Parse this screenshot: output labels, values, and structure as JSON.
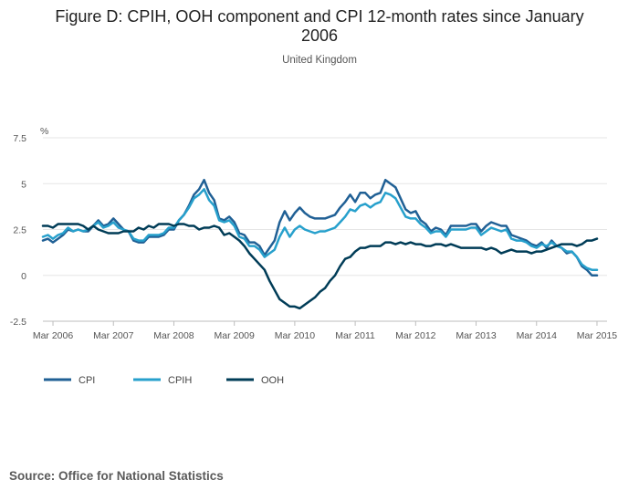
{
  "title": "Figure D: CPIH, OOH component and CPI 12-month rates since January 2006",
  "title_lines": [
    "Figure D: CPIH, OOH component and CPI 12-month rates since January",
    "2006"
  ],
  "subtitle": "United Kingdom",
  "source": "Source: Office for National Statistics",
  "chart_data": {
    "type": "line",
    "title": "Figure D: CPIH, OOH component and CPI 12-month rates since January 2006",
    "subtitle": "United Kingdom",
    "xlabel": "",
    "ylabel": "%",
    "ylim": [
      -2.5,
      7.5
    ],
    "yticks": [
      -2.5,
      0,
      2.5,
      5,
      7.5
    ],
    "ytick_labels": [
      "-2.5",
      "0",
      "2.5",
      "5",
      "7.5"
    ],
    "x_start": "Jan 2006",
    "x_end": "Apr 2015",
    "xticks": [
      "Mar 2006",
      "Mar 2007",
      "Mar 2008",
      "Mar 2009",
      "Mar 2010",
      "Mar 2011",
      "Mar 2012",
      "Mar 2013",
      "Mar 2014",
      "Mar 2015"
    ],
    "grid": true,
    "legend_position": "bottom-left",
    "series": [
      {
        "name": "CPI",
        "color": "#206095",
        "start": "Jan 2006",
        "values": [
          1.9,
          2.0,
          1.8,
          2.0,
          2.2,
          2.5,
          2.4,
          2.5,
          2.4,
          2.4,
          2.7,
          3.0,
          2.7,
          2.8,
          3.1,
          2.8,
          2.5,
          2.4,
          1.9,
          1.8,
          1.8,
          2.1,
          2.1,
          2.1,
          2.2,
          2.5,
          2.5,
          3.0,
          3.3,
          3.8,
          4.4,
          4.7,
          5.2,
          4.5,
          4.1,
          3.1,
          3.0,
          3.2,
          2.9,
          2.3,
          2.2,
          1.8,
          1.8,
          1.6,
          1.1,
          1.5,
          1.9,
          2.9,
          3.5,
          3.0,
          3.4,
          3.7,
          3.4,
          3.2,
          3.1,
          3.1,
          3.1,
          3.2,
          3.3,
          3.7,
          4.0,
          4.4,
          4.0,
          4.5,
          4.5,
          4.2,
          4.4,
          4.5,
          5.2,
          5.0,
          4.8,
          4.2,
          3.6,
          3.4,
          3.5,
          3.0,
          2.8,
          2.4,
          2.6,
          2.5,
          2.2,
          2.7,
          2.7,
          2.7,
          2.7,
          2.8,
          2.8,
          2.4,
          2.7,
          2.9,
          2.8,
          2.7,
          2.7,
          2.2,
          2.1,
          2.0,
          1.9,
          1.7,
          1.6,
          1.8,
          1.5,
          1.9,
          1.6,
          1.5,
          1.2,
          1.3,
          1.0,
          0.5,
          0.3,
          0.0,
          0.0
        ]
      },
      {
        "name": "CPIH",
        "color": "#27a0cc",
        "start": "Jan 2006",
        "values": [
          2.1,
          2.2,
          2.0,
          2.2,
          2.3,
          2.6,
          2.4,
          2.5,
          2.4,
          2.5,
          2.7,
          2.9,
          2.6,
          2.7,
          2.9,
          2.6,
          2.5,
          2.4,
          2.0,
          1.9,
          1.9,
          2.2,
          2.2,
          2.2,
          2.3,
          2.6,
          2.6,
          3.0,
          3.3,
          3.7,
          4.2,
          4.4,
          4.7,
          4.1,
          3.8,
          3.0,
          2.9,
          3.0,
          2.7,
          2.1,
          2.0,
          1.6,
          1.6,
          1.4,
          1.0,
          1.2,
          1.4,
          2.1,
          2.6,
          2.1,
          2.5,
          2.7,
          2.5,
          2.4,
          2.3,
          2.4,
          2.4,
          2.5,
          2.6,
          2.9,
          3.2,
          3.6,
          3.5,
          3.8,
          3.9,
          3.7,
          3.9,
          4.0,
          4.5,
          4.4,
          4.2,
          3.7,
          3.2,
          3.1,
          3.1,
          2.8,
          2.6,
          2.3,
          2.4,
          2.4,
          2.1,
          2.5,
          2.5,
          2.5,
          2.5,
          2.6,
          2.6,
          2.2,
          2.4,
          2.6,
          2.5,
          2.4,
          2.5,
          2.0,
          1.9,
          1.9,
          1.8,
          1.6,
          1.5,
          1.7,
          1.6,
          1.8,
          1.6,
          1.5,
          1.3,
          1.3,
          1.0,
          0.6,
          0.4,
          0.3,
          0.3
        ]
      },
      {
        "name": "OOH",
        "color": "#003c57",
        "start": "Jan 2006",
        "values": [
          2.7,
          2.7,
          2.6,
          2.8,
          2.8,
          2.8,
          2.8,
          2.8,
          2.7,
          2.5,
          2.7,
          2.5,
          2.4,
          2.3,
          2.3,
          2.3,
          2.4,
          2.4,
          2.4,
          2.6,
          2.5,
          2.7,
          2.6,
          2.8,
          2.8,
          2.8,
          2.7,
          2.8,
          2.8,
          2.7,
          2.7,
          2.5,
          2.6,
          2.6,
          2.7,
          2.6,
          2.2,
          2.3,
          2.1,
          1.9,
          1.6,
          1.2,
          0.9,
          0.6,
          0.3,
          -0.3,
          -0.8,
          -1.3,
          -1.5,
          -1.7,
          -1.7,
          -1.8,
          -1.6,
          -1.4,
          -1.2,
          -0.9,
          -0.7,
          -0.3,
          0.0,
          0.5,
          0.9,
          1.0,
          1.3,
          1.5,
          1.5,
          1.6,
          1.6,
          1.6,
          1.8,
          1.8,
          1.7,
          1.8,
          1.7,
          1.8,
          1.7,
          1.7,
          1.6,
          1.6,
          1.7,
          1.7,
          1.6,
          1.7,
          1.6,
          1.5,
          1.5,
          1.5,
          1.5,
          1.5,
          1.4,
          1.5,
          1.4,
          1.2,
          1.3,
          1.4,
          1.3,
          1.3,
          1.3,
          1.2,
          1.3,
          1.3,
          1.4,
          1.5,
          1.6,
          1.7,
          1.7,
          1.7,
          1.6,
          1.7,
          1.9,
          1.9,
          2.0
        ]
      }
    ]
  }
}
